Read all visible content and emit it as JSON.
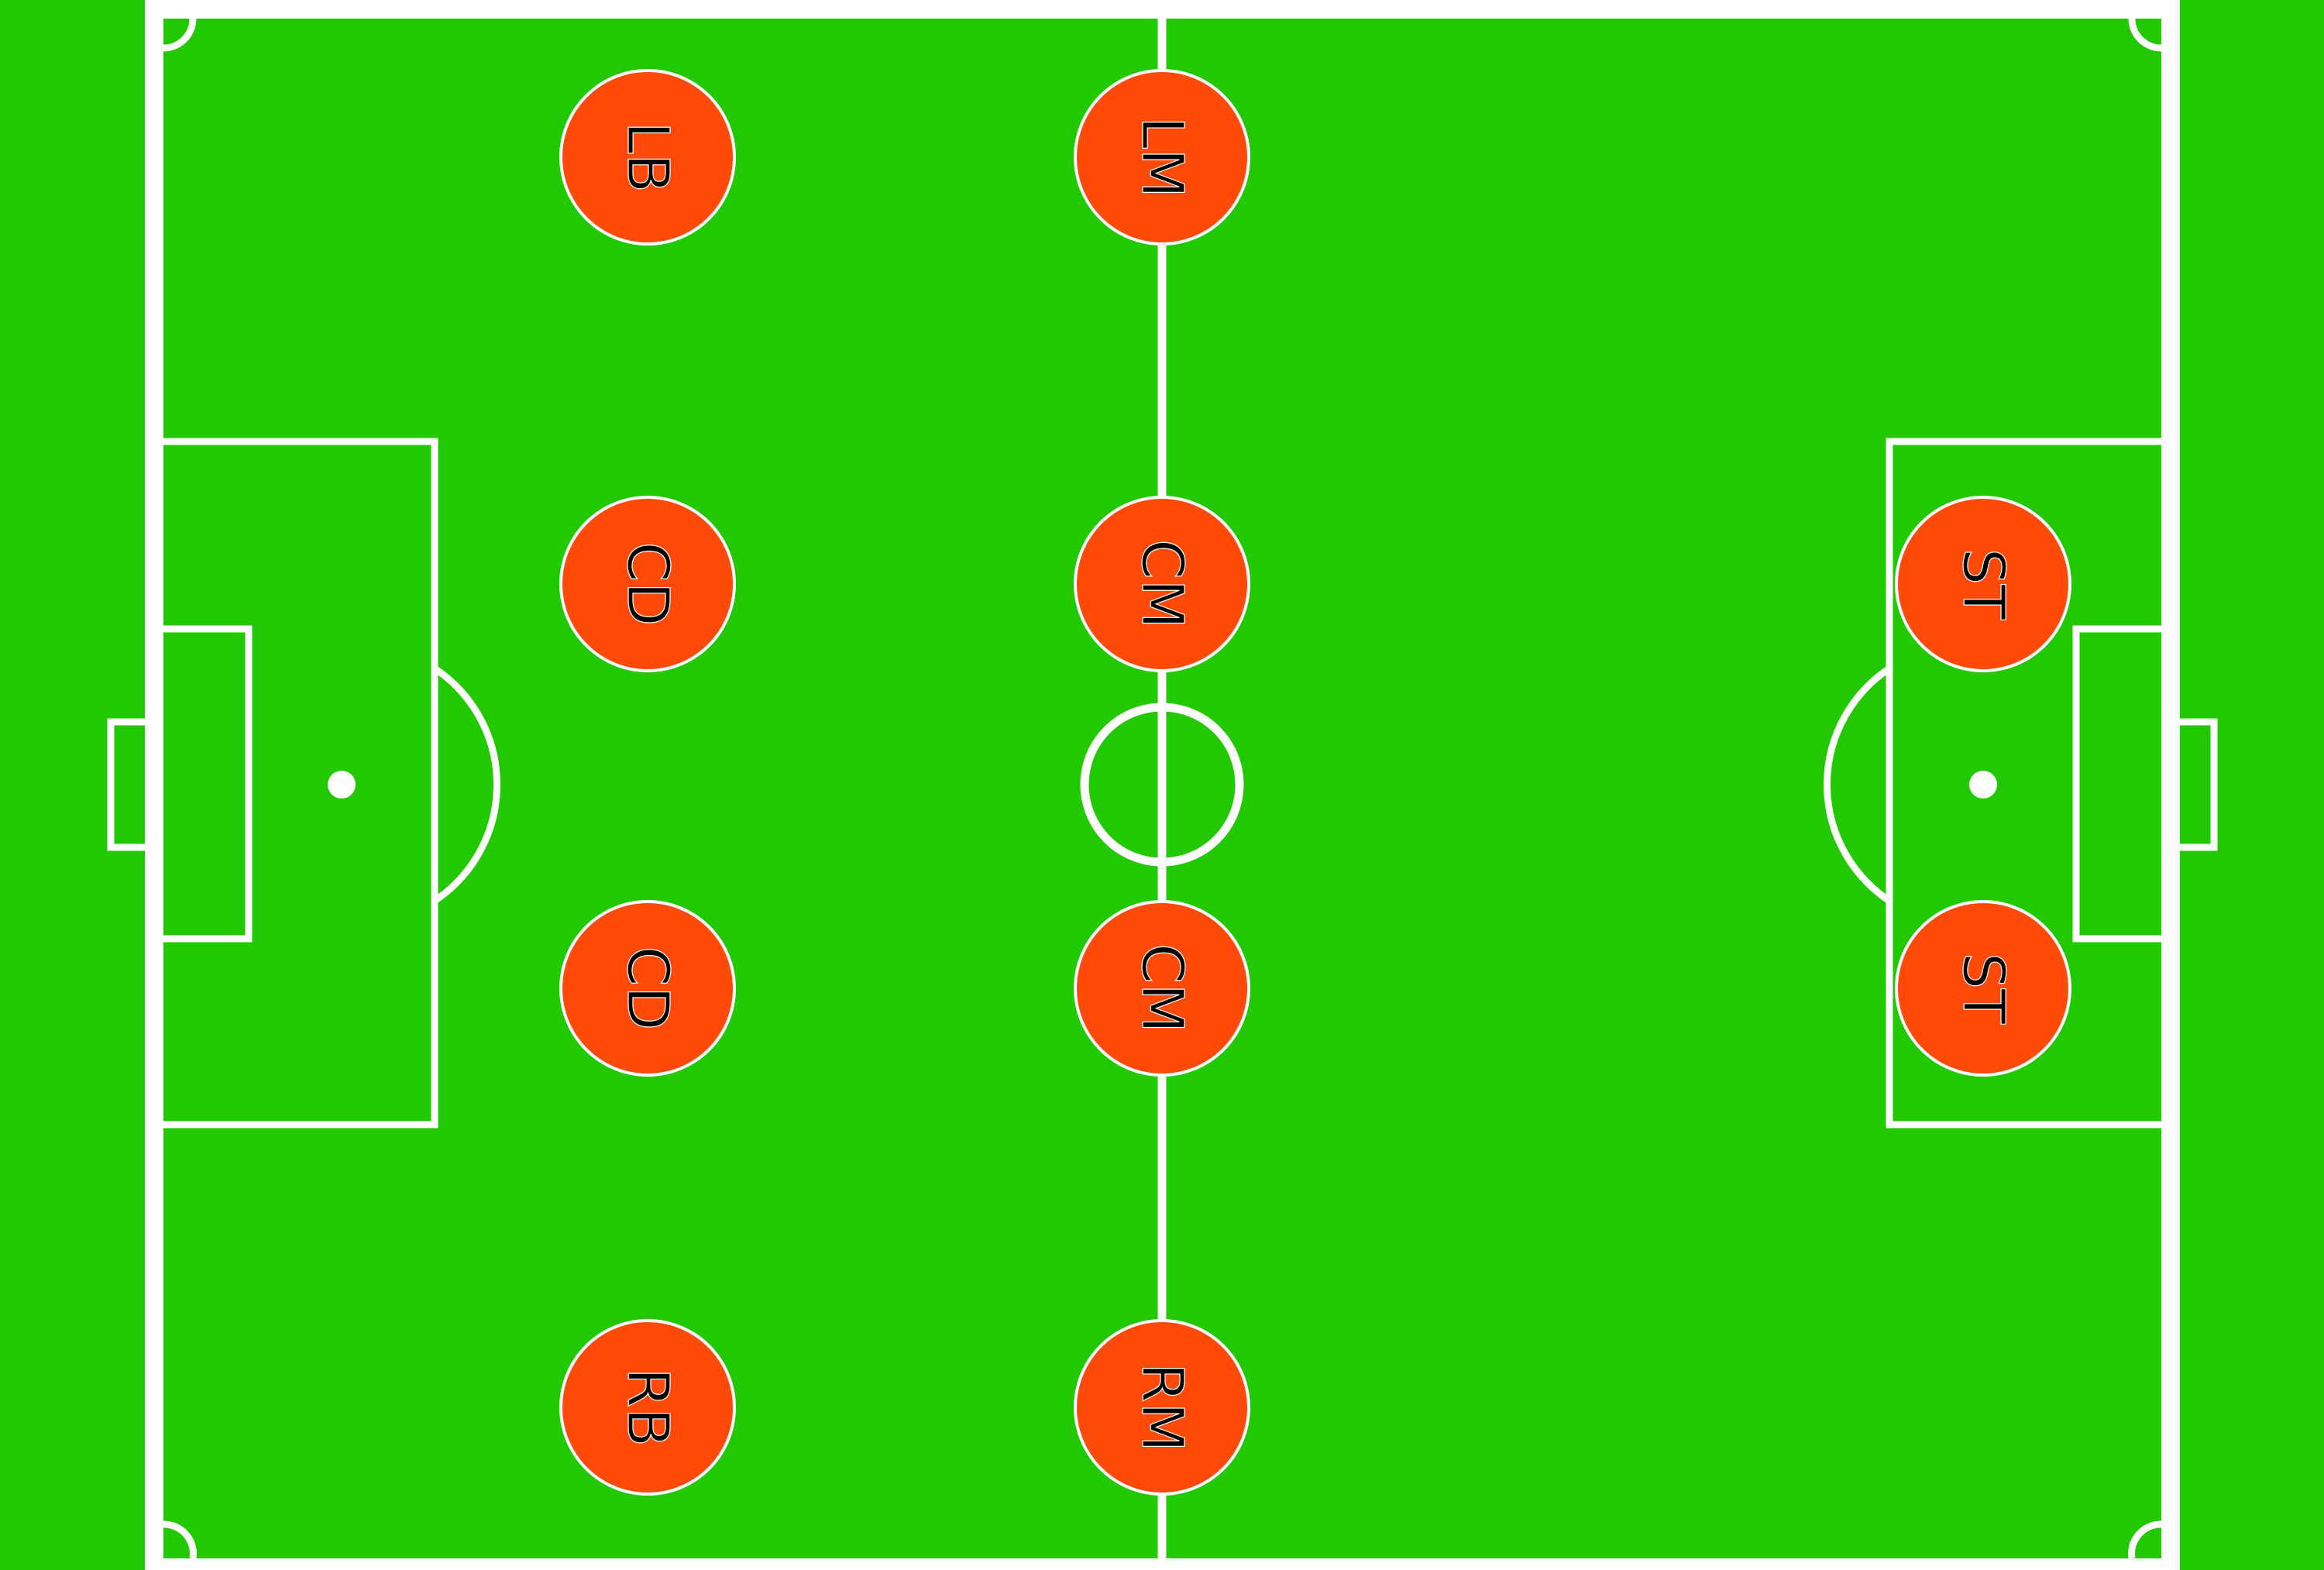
{
  "colors": {
    "grass": "#22c800",
    "lines": "#ffffff",
    "player_fill": "#ff4a0a",
    "label_text": "#000000"
  },
  "players": [
    {
      "id": "lb",
      "label": "LB"
    },
    {
      "id": "cd-1",
      "label": "CD"
    },
    {
      "id": "cd-2",
      "label": "CD"
    },
    {
      "id": "rb",
      "label": "RB"
    },
    {
      "id": "lm",
      "label": "LM"
    },
    {
      "id": "cm-1",
      "label": "CM"
    },
    {
      "id": "cm-2",
      "label": "CM"
    },
    {
      "id": "rm",
      "label": "RM"
    },
    {
      "id": "st-1",
      "label": "ST"
    },
    {
      "id": "st-2",
      "label": "ST"
    }
  ]
}
